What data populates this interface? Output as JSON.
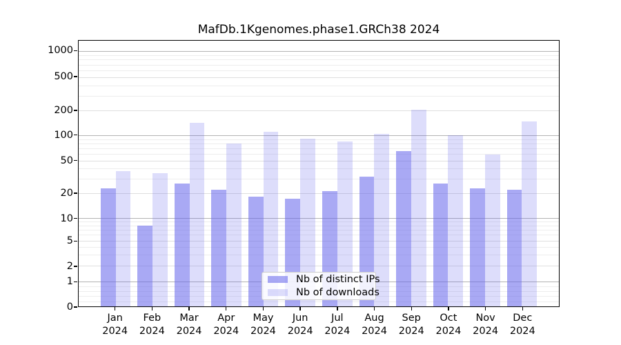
{
  "title": "MafDb.1Kgenomes.phase1.GRCh38 2024",
  "chart_data": {
    "type": "bar",
    "title": "MafDb.1Kgenomes.phase1.GRCh38 2024",
    "xlabel": "",
    "ylabel": "",
    "x_tick_months": [
      "Jan",
      "Feb",
      "Mar",
      "Apr",
      "May",
      "Jun",
      "Jul",
      "Aug",
      "Sep",
      "Oct",
      "Nov",
      "Dec"
    ],
    "x_tick_year": "2024",
    "series": [
      {
        "name": "Nb of distinct IPs",
        "color": "rgba(98,98,235,0.55)",
        "values": [
          23,
          8,
          26,
          22,
          18,
          17,
          21,
          32,
          65,
          26,
          23,
          22
        ]
      },
      {
        "name": "Nb of downloads",
        "color": "rgba(98,98,235,0.22)",
        "values": [
          37,
          35,
          141,
          80,
          110,
          91,
          84,
          103,
          207,
          100,
          59,
          147
        ]
      }
    ],
    "yticks": [
      0,
      1,
      2,
      5,
      10,
      20,
      50,
      100,
      200,
      500,
      1000
    ],
    "ylim": [
      0,
      1000
    ],
    "scale": "quasi-log",
    "grid": true,
    "legend_position": "lower center inside"
  }
}
